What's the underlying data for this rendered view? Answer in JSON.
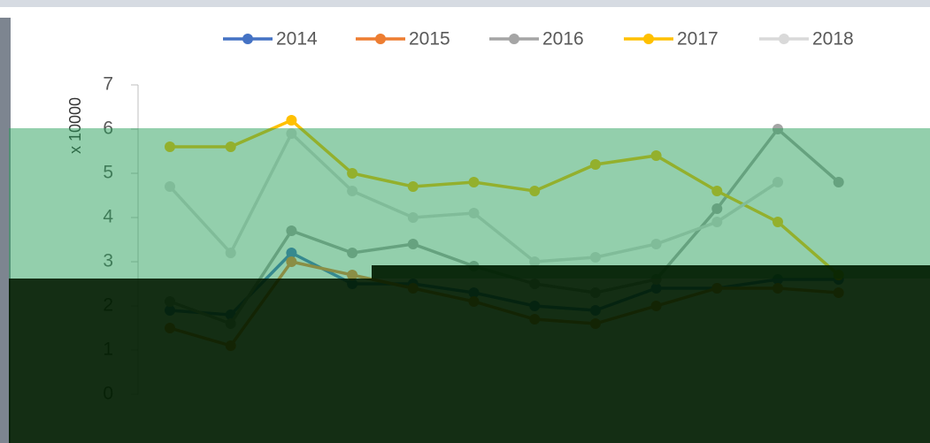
{
  "chart_data": {
    "type": "line",
    "y_label": "x 10000",
    "categories": [
      null,
      null,
      null,
      null,
      null,
      null,
      null,
      null,
      null,
      null,
      null,
      null
    ],
    "ylim": [
      0,
      7
    ],
    "yticks": [
      0,
      1,
      2,
      3,
      4,
      5,
      6,
      7
    ],
    "legend": "top",
    "series": [
      {
        "name": "2014",
        "color": "#4472c4",
        "values": [
          1.9,
          1.8,
          3.2,
          2.5,
          2.5,
          2.3,
          2.0,
          1.9,
          2.4,
          2.4,
          2.6,
          2.6
        ]
      },
      {
        "name": "2015",
        "color": "#ed7d31",
        "values": [
          1.5,
          1.1,
          3.0,
          2.7,
          2.4,
          2.1,
          1.7,
          1.6,
          2.0,
          2.4,
          2.4,
          2.3
        ]
      },
      {
        "name": "2016",
        "color": "#a5a5a5",
        "values": [
          2.1,
          1.6,
          3.7,
          3.2,
          3.4,
          2.9,
          2.5,
          2.3,
          2.6,
          4.2,
          6.0,
          4.8
        ]
      },
      {
        "name": "2017",
        "color": "#ffc000",
        "values": [
          5.6,
          5.6,
          6.2,
          5.0,
          4.7,
          4.8,
          4.6,
          5.2,
          5.4,
          4.6,
          3.9,
          2.7
        ]
      },
      {
        "name": "2018",
        "color": "#d9d9d9",
        "values": [
          4.7,
          3.2,
          5.9,
          4.6,
          4.0,
          4.1,
          3.0,
          3.1,
          3.4,
          3.9,
          4.8,
          null
        ]
      }
    ]
  }
}
